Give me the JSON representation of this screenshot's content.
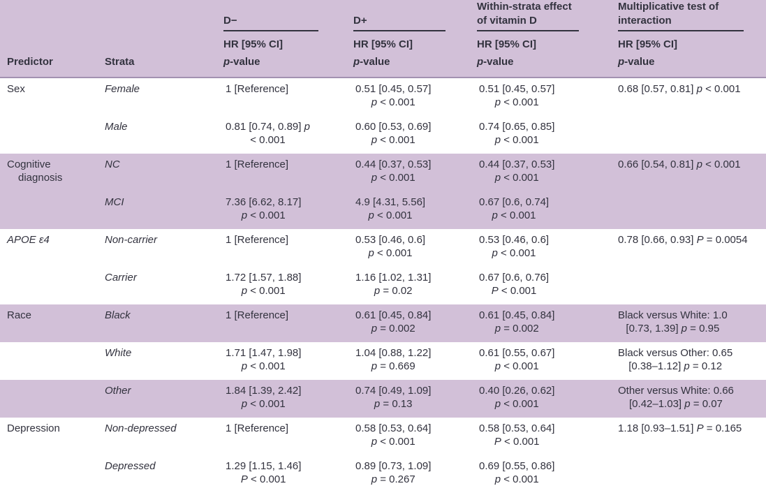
{
  "table": {
    "colors": {
      "band": "#d2c0d8",
      "header_divider": "#a391b1",
      "bottom_border": "#cbbad3",
      "text": "#32323e"
    },
    "header": {
      "predictor": "Predictor",
      "strata": "Strata",
      "groups": [
        {
          "label": "D−",
          "sub": [
            "HR [95% CI]",
            "p-value"
          ]
        },
        {
          "label": "D+",
          "sub": [
            "HR [95% CI]",
            "p-value"
          ]
        },
        {
          "label": "Within-strata effect of vitamin D",
          "sub": [
            "HR [95% CI]",
            "p-value"
          ]
        },
        {
          "label": "Multiplicative test of interaction",
          "sub": [
            "HR [95% CI]",
            "p-value"
          ]
        }
      ]
    },
    "rows": [
      {
        "predictor": "Sex",
        "predictor_italic": false,
        "strata": "Female",
        "band": "white",
        "dminus": [
          "1 [Reference]"
        ],
        "dplus": [
          "0.51 [0.45, 0.57]",
          "p < 0.001"
        ],
        "within": [
          "0.51 [0.45, 0.57]",
          "p < 0.001"
        ],
        "mult": [
          "0.68 [0.57, 0.81] p < 0.001"
        ]
      },
      {
        "predictor": "",
        "predictor_italic": false,
        "strata": "Male",
        "band": "white",
        "dminus": [
          "0.81 [0.74, 0.89] p",
          "< 0.001"
        ],
        "dplus": [
          "0.60 [0.53, 0.69]",
          "p < 0.001"
        ],
        "within": [
          "0.74 [0.65, 0.85]",
          "p < 0.001"
        ],
        "mult": []
      },
      {
        "predictor": "Cognitive diagnosis",
        "predictor_italic": false,
        "strata": "NC",
        "band": "purple",
        "dminus": [
          "1 [Reference]"
        ],
        "dplus": [
          "0.44 [0.37, 0.53]",
          "p < 0.001"
        ],
        "within": [
          "0.44 [0.37, 0.53]",
          "p < 0.001"
        ],
        "mult": [
          "0.66 [0.54, 0.81] p < 0.001"
        ]
      },
      {
        "predictor": "",
        "predictor_italic": false,
        "strata": "MCI",
        "band": "purple",
        "dminus": [
          "7.36 [6.62, 8.17]",
          "p < 0.001"
        ],
        "dplus": [
          "4.9 [4.31, 5.56]",
          "p < 0.001"
        ],
        "within": [
          "0.67 [0.6, 0.74]",
          "p < 0.001"
        ],
        "mult": []
      },
      {
        "predictor": "APOE ε4",
        "predictor_italic": true,
        "strata": "Non-carrier",
        "band": "white",
        "dminus": [
          "1 [Reference]"
        ],
        "dplus": [
          "0.53 [0.46, 0.6]",
          "p < 0.001"
        ],
        "within": [
          "0.53 [0.46, 0.6]",
          "p < 0.001"
        ],
        "mult": [
          "0.78 [0.66, 0.93] P = 0.0054"
        ]
      },
      {
        "predictor": "",
        "predictor_italic": false,
        "strata": "Carrier",
        "band": "white",
        "dminus": [
          "1.72 [1.57, 1.88]",
          "p < 0.001"
        ],
        "dplus": [
          "1.16 [1.02, 1.31]",
          "p = 0.02"
        ],
        "within": [
          "0.67 [0.6, 0.76]",
          "P < 0.001"
        ],
        "mult": []
      },
      {
        "predictor": "Race",
        "predictor_italic": false,
        "strata": "Black",
        "band": "purple",
        "dminus": [
          "1 [Reference]"
        ],
        "dplus": [
          "0.61 [0.45, 0.84]",
          "p = 0.002"
        ],
        "within": [
          "0.61 [0.45, 0.84]",
          "p = 0.002"
        ],
        "mult": [
          "Black versus White: 1.0",
          "[0.73, 1.39] p = 0.95"
        ]
      },
      {
        "predictor": "",
        "predictor_italic": false,
        "strata": "White",
        "band": "white",
        "dminus": [
          "1.71 [1.47, 1.98]",
          "p < 0.001"
        ],
        "dplus": [
          "1.04 [0.88, 1.22]",
          "p = 0.669"
        ],
        "within": [
          "0.61 [0.55, 0.67]",
          "p < 0.001"
        ],
        "mult": [
          "Black versus Other: 0.65",
          "[0.38–1.12] p = 0.12"
        ]
      },
      {
        "predictor": "",
        "predictor_italic": false,
        "strata": "Other",
        "band": "purple",
        "dminus": [
          "1.84 [1.39, 2.42]",
          "p < 0.001"
        ],
        "dplus": [
          "0.74 [0.49, 1.09]",
          "p = 0.13"
        ],
        "within": [
          "0.40 [0.26, 0.62]",
          "p < 0.001"
        ],
        "mult": [
          "Other versus White: 0.66",
          "[0.42–1.03] p = 0.07"
        ]
      },
      {
        "predictor": "Depression",
        "predictor_italic": false,
        "strata": "Non-depressed",
        "band": "white",
        "dminus": [
          "1 [Reference]"
        ],
        "dplus": [
          "0.58 [0.53, 0.64]",
          "p < 0.001"
        ],
        "within": [
          "0.58 [0.53, 0.64]",
          "P < 0.001"
        ],
        "mult": [
          "1.18 [0.93–1.51] P = 0.165"
        ]
      },
      {
        "predictor": "",
        "predictor_italic": false,
        "strata": "Depressed",
        "band": "white",
        "dminus": [
          "1.29 [1.15, 1.46]",
          "P < 0.001"
        ],
        "dplus": [
          "0.89 [0.73, 1.09]",
          "p = 0.267"
        ],
        "within": [
          "0.69 [0.55, 0.86]",
          "p < 0.001"
        ],
        "mult": []
      }
    ]
  }
}
